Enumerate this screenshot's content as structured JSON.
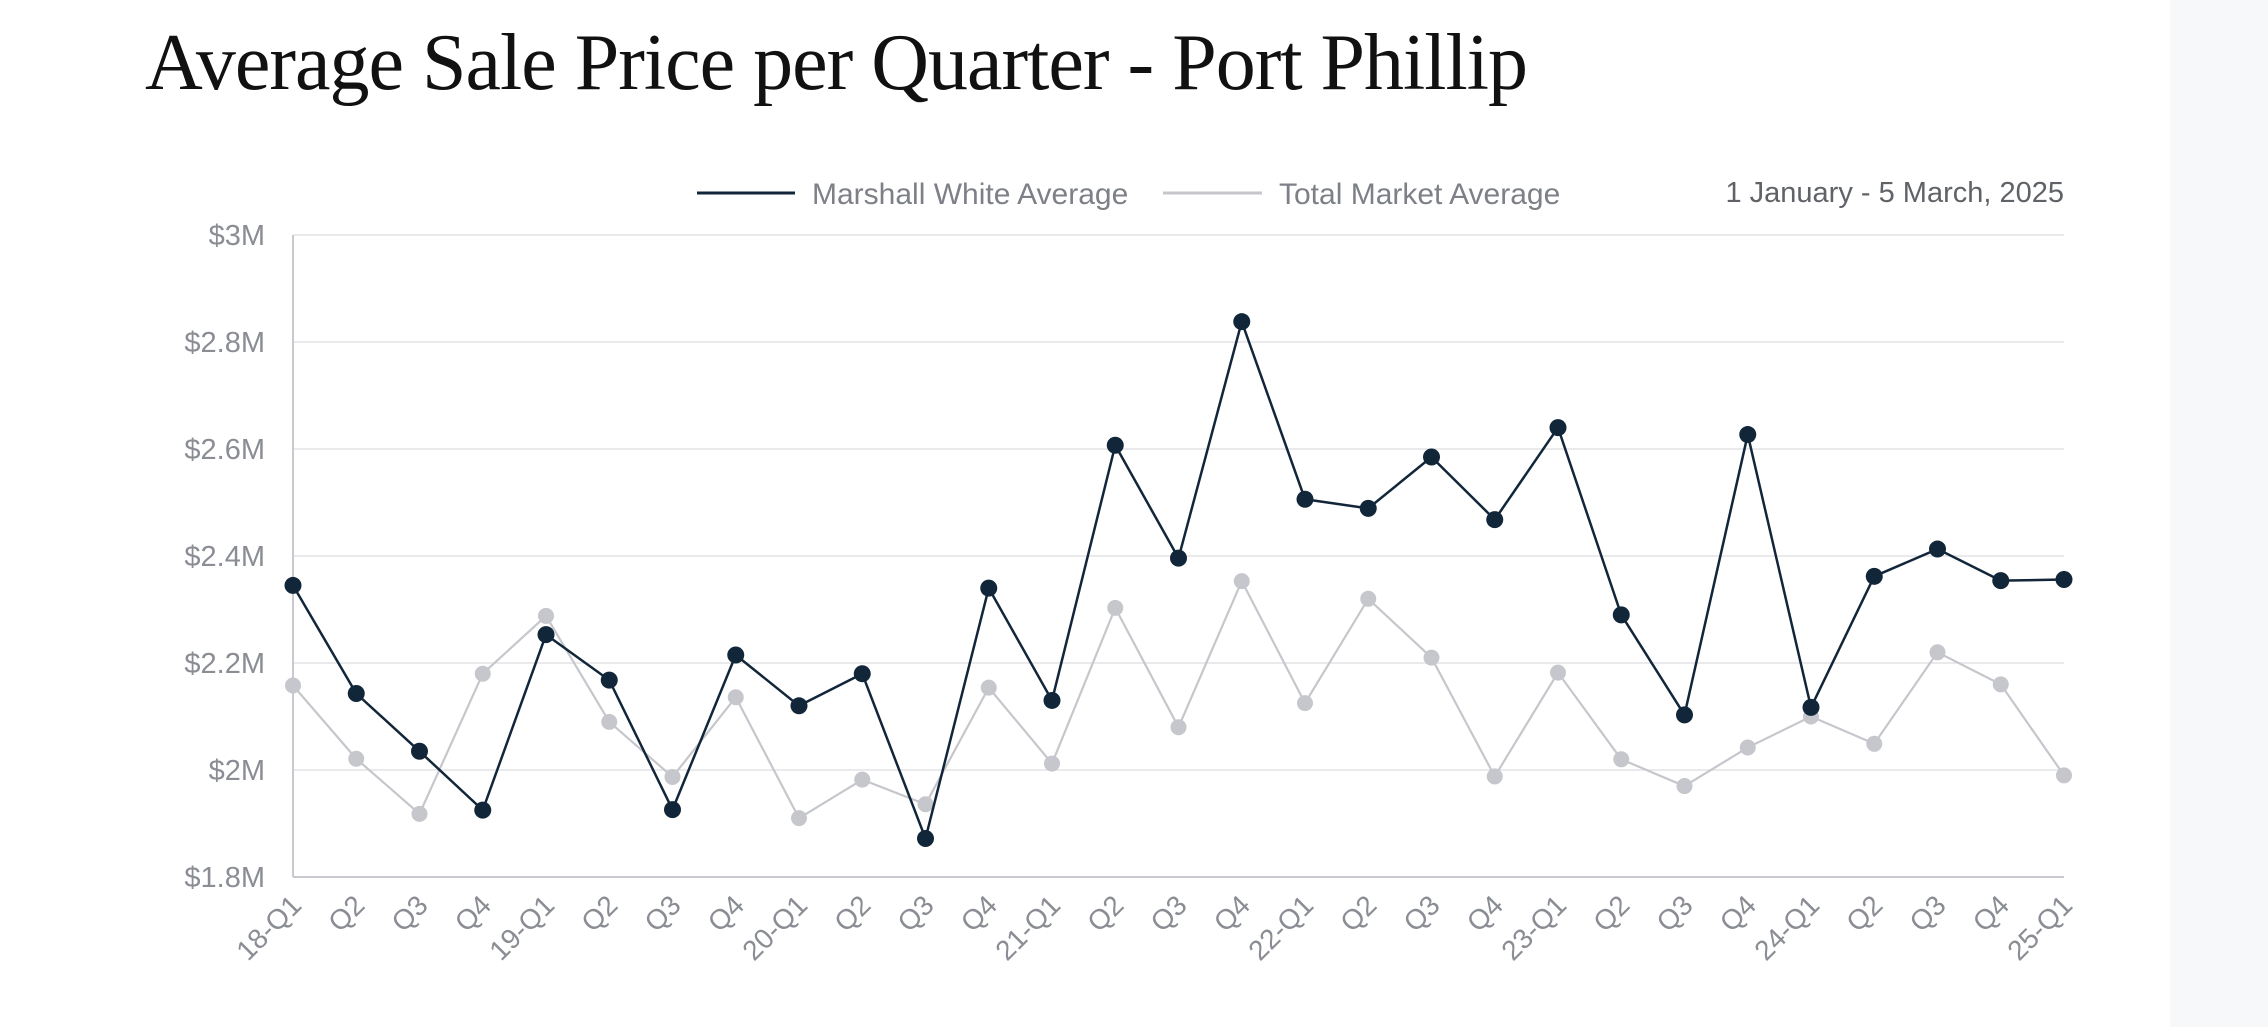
{
  "title": "Average Sale Price per Quarter - Port Phillip",
  "date_range": "1 January - 5 March, 2025",
  "colors": {
    "marshall_white": "#12263a",
    "total_market": "#c6c7cc",
    "grid": "#e3e4e7",
    "axis": "#c9cacf",
    "tick_text": "#8a8d93"
  },
  "chart_data": {
    "type": "line",
    "title": "Average Sale Price per Quarter - Port Phillip",
    "xlabel": "",
    "ylabel": "",
    "ylim": [
      1.8,
      3.0
    ],
    "y_ticks": [
      1.8,
      2.0,
      2.2,
      2.4,
      2.6,
      2.8,
      3.0
    ],
    "y_tick_labels": [
      "$1.8M",
      "$2M",
      "$2.2M",
      "$2.4M",
      "$2.6M",
      "$2.8M",
      "$3M"
    ],
    "grid": true,
    "legend_position": "top",
    "categories": [
      "18-Q1",
      "Q2",
      "Q3",
      "Q4",
      "19-Q1",
      "Q2",
      "Q3",
      "Q4",
      "20-Q1",
      "Q2",
      "Q3",
      "Q4",
      "21-Q1",
      "Q2",
      "Q3",
      "Q4",
      "22-Q1",
      "Q2",
      "Q3",
      "Q4",
      "23-Q1",
      "Q2",
      "Q3",
      "Q4",
      "24-Q1",
      "Q2",
      "Q3",
      "Q4",
      "25-Q1"
    ],
    "series": [
      {
        "name": "Marshall White Average",
        "color": "#12263a",
        "values": [
          2.345,
          2.143,
          2.035,
          1.925,
          2.253,
          2.168,
          1.926,
          2.215,
          2.12,
          2.18,
          1.872,
          2.34,
          2.13,
          2.607,
          2.396,
          2.838,
          2.506,
          2.489,
          2.585,
          2.468,
          2.64,
          2.29,
          2.103,
          2.627,
          2.117,
          2.362,
          2.413,
          2.354,
          2.356
        ]
      },
      {
        "name": "Total Market Average",
        "color": "#c6c7cc",
        "values": [
          2.158,
          2.021,
          1.918,
          2.18,
          2.288,
          2.09,
          1.987,
          2.136,
          1.91,
          1.982,
          1.936,
          2.154,
          2.012,
          2.303,
          2.08,
          2.353,
          2.125,
          2.32,
          2.21,
          1.988,
          2.182,
          2.02,
          1.97,
          2.042,
          2.1,
          2.049,
          2.22,
          2.16,
          1.99
        ]
      }
    ]
  }
}
